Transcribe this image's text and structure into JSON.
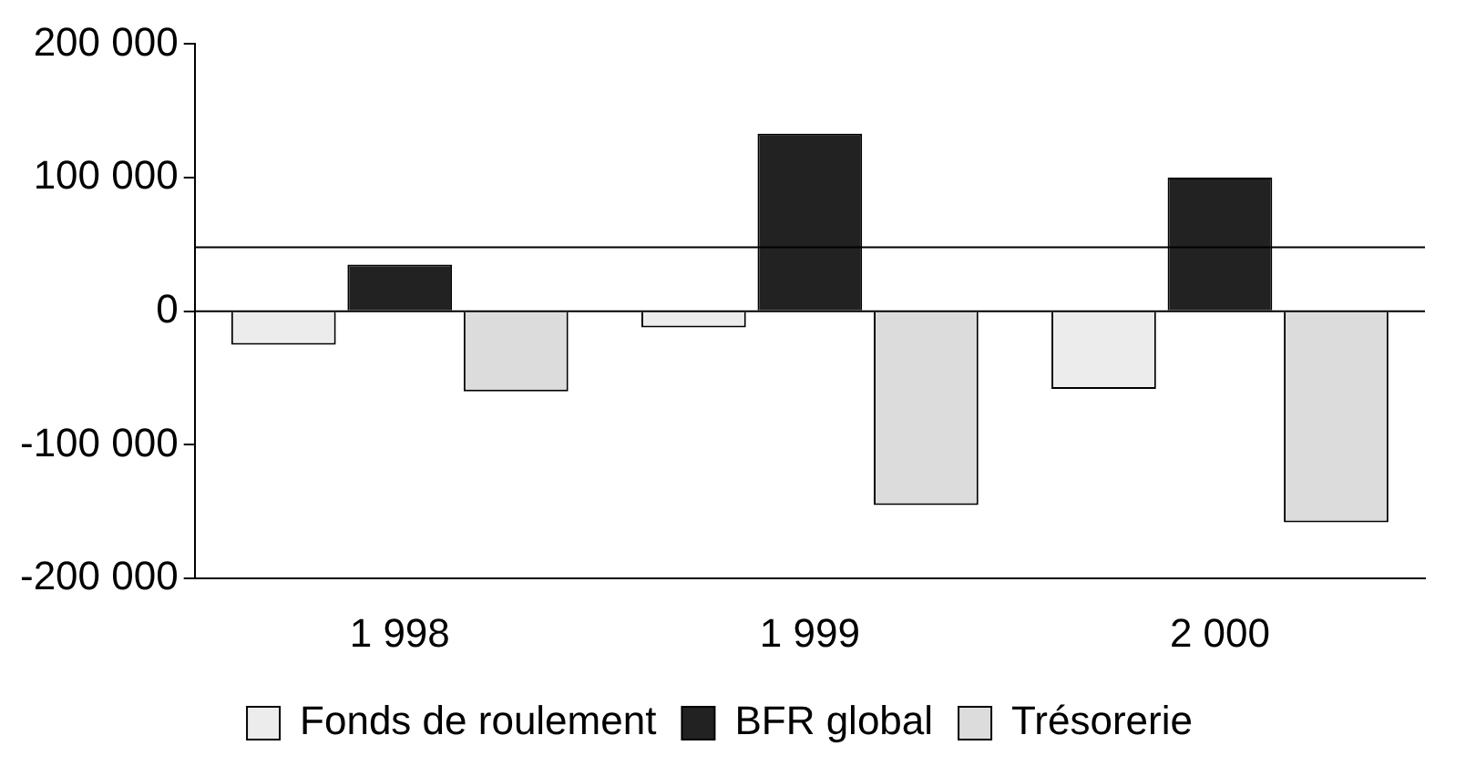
{
  "chart_data": {
    "type": "bar",
    "categories": [
      "1 998",
      "1 999",
      "2 000"
    ],
    "series": [
      {
        "name": "Fonds de roulement",
        "color": "#ececec",
        "values": [
          -25000,
          -12000,
          -58000
        ]
      },
      {
        "name": "BFR global",
        "color": "#222222",
        "values": [
          35000,
          133000,
          100000
        ]
      },
      {
        "name": "Trésorerie",
        "color": "#dcdcdc",
        "values": [
          -60000,
          -145000,
          -158000
        ]
      }
    ],
    "ylim": [
      -200000,
      200000
    ],
    "yticks": [
      {
        "value": -200000,
        "label": "-200 000"
      },
      {
        "value": -100000,
        "label": "-100 000"
      },
      {
        "value": 0,
        "label": "0"
      },
      {
        "value": 100000,
        "label": "100 000"
      },
      {
        "value": 200000,
        "label": "200 000"
      }
    ],
    "ref_lines": [
      {
        "axis": "y",
        "value": 48000,
        "label": null
      }
    ],
    "legend": "bottom"
  }
}
